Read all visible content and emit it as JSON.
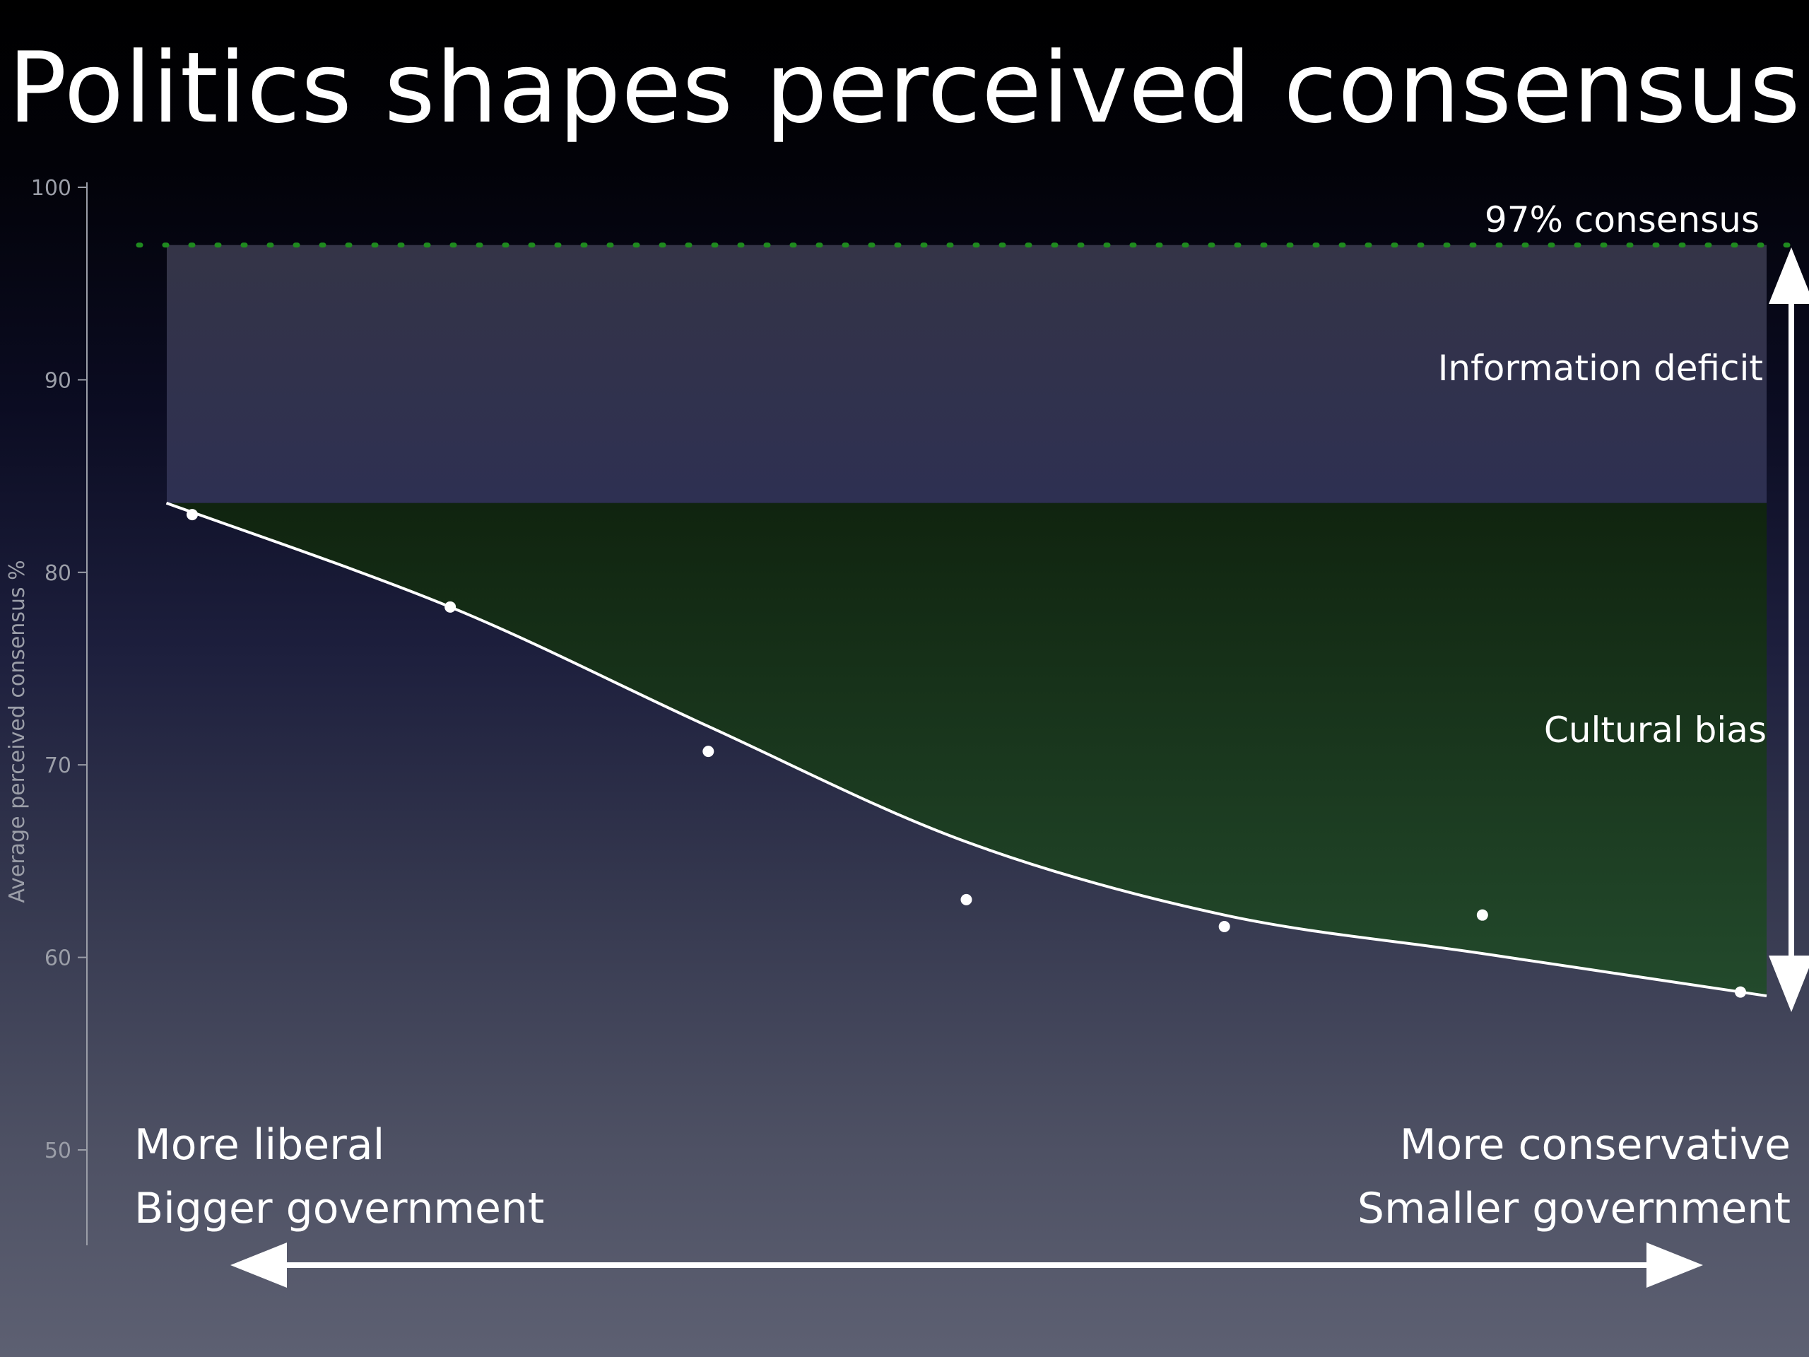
{
  "slide": {
    "title": "Politics shapes perceived consensus"
  },
  "chart_data": {
    "type": "scatter",
    "title": "Politics shapes perceived consensus",
    "ylabel": "Average perceived consensus %",
    "xlabel": "",
    "ylim": [
      45,
      100
    ],
    "yticks": [
      50,
      60,
      70,
      80,
      90,
      100
    ],
    "x_ends": {
      "left": [
        "More liberal",
        "Bigger government"
      ],
      "right": [
        "More conservative",
        "Smaller government"
      ]
    },
    "series": [
      {
        "points": [
          {
            "x": 1,
            "y": 83.0
          },
          {
            "x": 2,
            "y": 78.2
          },
          {
            "x": 3,
            "y": 70.7
          },
          {
            "x": 4,
            "y": 63.0
          },
          {
            "x": 5,
            "y": 61.6
          },
          {
            "x": 6,
            "y": 62.2
          },
          {
            "x": 7,
            "y": 58.2
          }
        ]
      }
    ],
    "trend_line": [
      {
        "x": 0.9,
        "y": 83.6
      },
      {
        "x": 2.0,
        "y": 78.2
      },
      {
        "x": 3.0,
        "y": 72.0
      },
      {
        "x": 4.0,
        "y": 66.0
      },
      {
        "x": 5.0,
        "y": 62.2
      },
      {
        "x": 6.0,
        "y": 60.2
      },
      {
        "x": 7.1,
        "y": 58.0
      }
    ],
    "reference_line": {
      "y": 97,
      "label": "97% consensus",
      "color": "#1f8a1f"
    },
    "bands": [
      {
        "label": "Information deficit",
        "y_from": 83.6,
        "y_to": 97,
        "color": "#323450"
      },
      {
        "label": "Cultural bias",
        "color": "#1d3a22"
      }
    ],
    "grid": false,
    "colors": {
      "points": "#ffffff",
      "trend": "#ffffff",
      "axis": "#9b9ea8"
    }
  }
}
